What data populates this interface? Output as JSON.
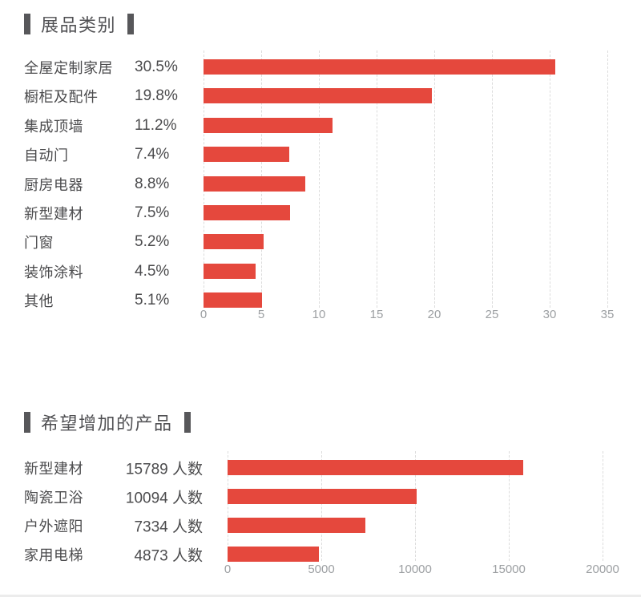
{
  "page": {
    "background": "#ffffff"
  },
  "colors": {
    "bar": "#e5483d",
    "title_text": "#515154",
    "title_mark": "#57575a",
    "label_text": "#4b4b4d",
    "tick_text": "#9da0a3",
    "gridline": "#dcdcdc"
  },
  "chart_data": [
    {
      "type": "bar",
      "orientation": "horizontal",
      "title": "展品类别",
      "categories": [
        "全屋定制家居",
        "橱柜及配件",
        "集成顶墙",
        "自动门",
        "厨房电器",
        "新型建材",
        "门窗",
        "装饰涂料",
        "其他"
      ],
      "values": [
        30.5,
        19.8,
        11.2,
        7.4,
        8.8,
        7.5,
        5.2,
        4.5,
        5.1
      ],
      "value_labels": [
        "30.5%",
        "19.8%",
        "11.2%",
        "7.4%",
        "8.8%",
        "7.5%",
        "5.2%",
        "4.5%",
        "5.1%"
      ],
      "xlim": [
        0,
        35
      ],
      "xticks": [
        0,
        5,
        10,
        15,
        20,
        25,
        30,
        35
      ],
      "xtick_labels": [
        "0",
        "5",
        "10",
        "15",
        "20",
        "25",
        "30",
        "35"
      ],
      "grid": "vertical-dashed",
      "legend": "none",
      "bar_color": "#e5483d"
    },
    {
      "type": "bar",
      "orientation": "horizontal",
      "title": "希望增加的产品",
      "categories": [
        "新型建材",
        "陶瓷卫浴",
        "户外遮阳",
        "家用电梯"
      ],
      "values": [
        15789,
        10094,
        7334,
        4873
      ],
      "value_labels": [
        "15789 人数",
        "10094 人数",
        "7334 人数",
        "4873 人数"
      ],
      "xlim": [
        0,
        20000
      ],
      "xticks": [
        0,
        5000,
        10000,
        15000,
        20000
      ],
      "xtick_labels": [
        "0",
        "5000",
        "10000",
        "15000",
        "20000"
      ],
      "grid": "vertical-dashed",
      "legend": "none",
      "bar_color": "#e5483d"
    }
  ]
}
